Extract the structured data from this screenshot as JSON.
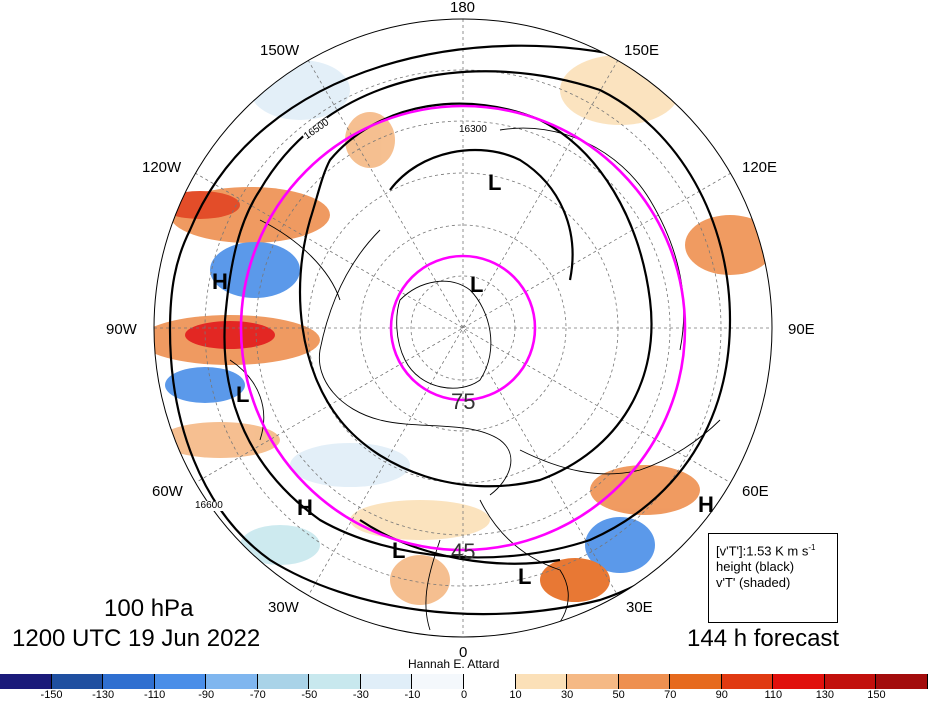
{
  "map": {
    "pole_label": "180",
    "longitude_labels": {
      "lon_150w": "150W",
      "lon_150e": "150E",
      "lon_120w": "120W",
      "lon_120e": "120E",
      "lon_90w": "90W",
      "lon_90e": "90E",
      "lon_60w": "60W",
      "lon_60e": "60E",
      "lon_30w": "30W",
      "lon_30e": "30E",
      "lon_0": "0"
    },
    "contour_labels": [
      "16500",
      "16300",
      "16600"
    ],
    "ring_labels": [
      "75",
      "45"
    ],
    "pressure_centers": [
      "L",
      "L",
      "H",
      "L",
      "H",
      "L",
      "L",
      "H"
    ],
    "author": "Hannah E. Attard"
  },
  "info": {
    "level": "100 hPa",
    "time": "1200 UTC 19 Jun 2022",
    "forecast": "144 h forecast"
  },
  "legend": {
    "line1": "[v'T']:1.53 K m s",
    "line1_sup": "-1",
    "line2": "height (black)",
    "line3": "v'T' (shaded)"
  },
  "colorbar": {
    "ticks": [
      "-150",
      "-130",
      "-110",
      "-90",
      "-70",
      "-50",
      "-30",
      "-10",
      "0",
      "10",
      "30",
      "50",
      "70",
      "90",
      "110",
      "130",
      "150"
    ],
    "colors": [
      "#1a1a7a",
      "#1f4fa0",
      "#2f6fd0",
      "#4a8ee8",
      "#7fb6ef",
      "#a9d3e8",
      "#c8e8ee",
      "#e0eef8",
      "#f4f8fc",
      "#ffffff",
      "#fbe0b8",
      "#f5b985",
      "#ee9050",
      "#e66a1e",
      "#e03a12",
      "#e0100c",
      "#c2100c",
      "#a30c0c"
    ]
  }
}
